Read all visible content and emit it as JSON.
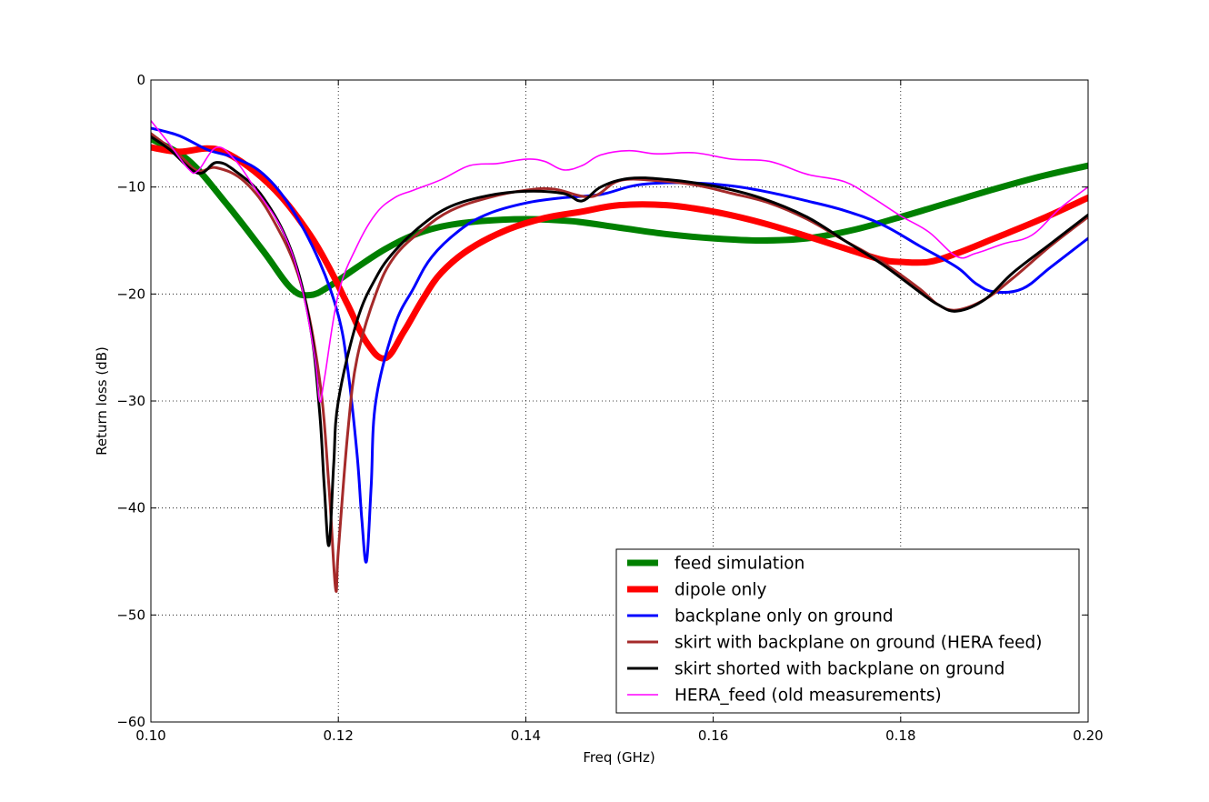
{
  "chart_data": {
    "type": "line",
    "title": "",
    "xlabel": "Freq (GHz)",
    "ylabel": "Return loss (dB)",
    "xlim": [
      0.1,
      0.2
    ],
    "ylim": [
      -60,
      0
    ],
    "grid": true,
    "legend_position": "lower-right",
    "x_ticks": [
      {
        "value": 0.1,
        "label": "0.10"
      },
      {
        "value": 0.12,
        "label": "0.12"
      },
      {
        "value": 0.14,
        "label": "0.14"
      },
      {
        "value": 0.16,
        "label": "0.16"
      },
      {
        "value": 0.18,
        "label": "0.18"
      },
      {
        "value": 0.2,
        "label": "0.20"
      }
    ],
    "y_ticks": [
      {
        "value": 0,
        "label": "0"
      },
      {
        "value": -10,
        "label": "−10"
      },
      {
        "value": -20,
        "label": "−20"
      },
      {
        "value": -30,
        "label": "−30"
      },
      {
        "value": -40,
        "label": "−40"
      },
      {
        "value": -50,
        "label": "−50"
      },
      {
        "value": -60,
        "label": "−60"
      }
    ],
    "series": [
      {
        "name": "feed simulation",
        "color": "#008000",
        "weight": "heavy",
        "points": [
          [
            0.1,
            -5.5
          ],
          [
            0.104,
            -7.5
          ],
          [
            0.108,
            -11.5
          ],
          [
            0.112,
            -16.0
          ],
          [
            0.115,
            -19.5
          ],
          [
            0.117,
            -20.1
          ],
          [
            0.119,
            -19.3
          ],
          [
            0.122,
            -17.5
          ],
          [
            0.125,
            -15.8
          ],
          [
            0.128,
            -14.5
          ],
          [
            0.131,
            -13.7
          ],
          [
            0.135,
            -13.2
          ],
          [
            0.14,
            -13.0
          ],
          [
            0.145,
            -13.2
          ],
          [
            0.15,
            -13.8
          ],
          [
            0.155,
            -14.4
          ],
          [
            0.16,
            -14.8
          ],
          [
            0.165,
            -15.0
          ],
          [
            0.17,
            -14.8
          ],
          [
            0.175,
            -14.0
          ],
          [
            0.18,
            -12.8
          ],
          [
            0.185,
            -11.5
          ],
          [
            0.19,
            -10.2
          ],
          [
            0.195,
            -9.0
          ],
          [
            0.2,
            -8.0
          ]
        ]
      },
      {
        "name": "dipole only",
        "color": "#ff0000",
        "weight": "heavy",
        "points": [
          [
            0.1,
            -6.3
          ],
          [
            0.103,
            -6.7
          ],
          [
            0.106,
            -6.4
          ],
          [
            0.108,
            -6.8
          ],
          [
            0.111,
            -8.5
          ],
          [
            0.114,
            -11.0
          ],
          [
            0.117,
            -14.5
          ],
          [
            0.119,
            -17.5
          ],
          [
            0.121,
            -21.0
          ],
          [
            0.123,
            -24.5
          ],
          [
            0.125,
            -26.0
          ],
          [
            0.127,
            -23.5
          ],
          [
            0.129,
            -20.5
          ],
          [
            0.131,
            -18.0
          ],
          [
            0.134,
            -15.8
          ],
          [
            0.138,
            -14.0
          ],
          [
            0.142,
            -12.9
          ],
          [
            0.146,
            -12.3
          ],
          [
            0.15,
            -11.7
          ],
          [
            0.155,
            -11.7
          ],
          [
            0.16,
            -12.3
          ],
          [
            0.165,
            -13.3
          ],
          [
            0.17,
            -14.6
          ],
          [
            0.175,
            -16.0
          ],
          [
            0.178,
            -16.8
          ],
          [
            0.18,
            -17.0
          ],
          [
            0.183,
            -17.0
          ],
          [
            0.186,
            -16.2
          ],
          [
            0.19,
            -14.8
          ],
          [
            0.195,
            -13.0
          ],
          [
            0.2,
            -11.0
          ]
        ]
      },
      {
        "name": "backplane only on ground",
        "color": "#0000ff",
        "weight": "medium",
        "points": [
          [
            0.1,
            -4.5
          ],
          [
            0.103,
            -5.2
          ],
          [
            0.106,
            -6.5
          ],
          [
            0.109,
            -7.3
          ],
          [
            0.112,
            -8.8
          ],
          [
            0.115,
            -12.0
          ],
          [
            0.118,
            -17.0
          ],
          [
            0.12,
            -22.0
          ],
          [
            0.121,
            -27.0
          ],
          [
            0.122,
            -35.0
          ],
          [
            0.1225,
            -41.0
          ],
          [
            0.123,
            -45.0
          ],
          [
            0.1235,
            -38.0
          ],
          [
            0.124,
            -30.0
          ],
          [
            0.126,
            -23.0
          ],
          [
            0.128,
            -19.5
          ],
          [
            0.13,
            -16.5
          ],
          [
            0.133,
            -14.0
          ],
          [
            0.136,
            -12.5
          ],
          [
            0.14,
            -11.5
          ],
          [
            0.144,
            -11.0
          ],
          [
            0.148,
            -10.7
          ],
          [
            0.152,
            -9.8
          ],
          [
            0.157,
            -9.6
          ],
          [
            0.162,
            -9.9
          ],
          [
            0.166,
            -10.5
          ],
          [
            0.17,
            -11.3
          ],
          [
            0.174,
            -12.2
          ],
          [
            0.178,
            -13.5
          ],
          [
            0.182,
            -15.5
          ],
          [
            0.186,
            -17.5
          ],
          [
            0.188,
            -19.0
          ],
          [
            0.19,
            -19.8
          ],
          [
            0.193,
            -19.5
          ],
          [
            0.196,
            -17.5
          ],
          [
            0.2,
            -14.8
          ]
        ]
      },
      {
        "name": "skirt with backplane on ground (HERA feed)",
        "color": "#a52a2a",
        "weight": "medium",
        "points": [
          [
            0.1,
            -5.0
          ],
          [
            0.103,
            -7.0
          ],
          [
            0.105,
            -8.5
          ],
          [
            0.107,
            -8.2
          ],
          [
            0.11,
            -9.5
          ],
          [
            0.113,
            -13.0
          ],
          [
            0.116,
            -19.0
          ],
          [
            0.118,
            -28.0
          ],
          [
            0.119,
            -38.0
          ],
          [
            0.1197,
            -47.5
          ],
          [
            0.12,
            -44.0
          ],
          [
            0.121,
            -33.0
          ],
          [
            0.122,
            -26.0
          ],
          [
            0.124,
            -20.0
          ],
          [
            0.126,
            -16.5
          ],
          [
            0.129,
            -14.0
          ],
          [
            0.132,
            -12.2
          ],
          [
            0.136,
            -11.0
          ],
          [
            0.14,
            -10.3
          ],
          [
            0.143,
            -10.2
          ],
          [
            0.147,
            -10.9
          ],
          [
            0.15,
            -9.4
          ],
          [
            0.154,
            -9.4
          ],
          [
            0.158,
            -9.8
          ],
          [
            0.162,
            -10.6
          ],
          [
            0.166,
            -11.5
          ],
          [
            0.17,
            -13.0
          ],
          [
            0.174,
            -15.0
          ],
          [
            0.178,
            -17.0
          ],
          [
            0.182,
            -19.5
          ],
          [
            0.184,
            -21.0
          ],
          [
            0.186,
            -21.5
          ],
          [
            0.189,
            -20.5
          ],
          [
            0.192,
            -18.5
          ],
          [
            0.196,
            -15.5
          ],
          [
            0.2,
            -12.8
          ]
        ]
      },
      {
        "name": "skirt shorted with backplane on ground",
        "color": "#000000",
        "weight": "medium",
        "points": [
          [
            0.1,
            -5.3
          ],
          [
            0.102,
            -6.5
          ],
          [
            0.105,
            -8.7
          ],
          [
            0.107,
            -7.7
          ],
          [
            0.109,
            -8.5
          ],
          [
            0.112,
            -11.0
          ],
          [
            0.115,
            -16.0
          ],
          [
            0.117,
            -23.0
          ],
          [
            0.118,
            -31.0
          ],
          [
            0.1185,
            -38.0
          ],
          [
            0.119,
            -43.5
          ],
          [
            0.1195,
            -36.0
          ],
          [
            0.12,
            -30.0
          ],
          [
            0.122,
            -22.5
          ],
          [
            0.124,
            -18.5
          ],
          [
            0.126,
            -16.0
          ],
          [
            0.129,
            -13.5
          ],
          [
            0.132,
            -11.8
          ],
          [
            0.136,
            -10.8
          ],
          [
            0.14,
            -10.4
          ],
          [
            0.144,
            -10.6
          ],
          [
            0.146,
            -11.3
          ],
          [
            0.148,
            -10.0
          ],
          [
            0.151,
            -9.2
          ],
          [
            0.155,
            -9.3
          ],
          [
            0.16,
            -9.9
          ],
          [
            0.165,
            -11.0
          ],
          [
            0.17,
            -12.8
          ],
          [
            0.174,
            -15.0
          ],
          [
            0.178,
            -17.2
          ],
          [
            0.182,
            -19.8
          ],
          [
            0.184,
            -21.0
          ],
          [
            0.186,
            -21.6
          ],
          [
            0.189,
            -20.5
          ],
          [
            0.192,
            -18.0
          ],
          [
            0.196,
            -15.3
          ],
          [
            0.2,
            -12.6
          ]
        ]
      },
      {
        "name": "HERA_feed (old measurements)",
        "color": "#ff00ff",
        "weight": "thin",
        "points": [
          [
            0.1,
            -3.8
          ],
          [
            0.102,
            -6.0
          ],
          [
            0.104,
            -8.3
          ],
          [
            0.105,
            -8.5
          ],
          [
            0.107,
            -6.3
          ],
          [
            0.109,
            -7.5
          ],
          [
            0.111,
            -10.0
          ],
          [
            0.114,
            -14.0
          ],
          [
            0.116,
            -19.0
          ],
          [
            0.1175,
            -26.0
          ],
          [
            0.118,
            -30.0
          ],
          [
            0.1185,
            -28.0
          ],
          [
            0.12,
            -20.0
          ],
          [
            0.122,
            -15.5
          ],
          [
            0.124,
            -12.5
          ],
          [
            0.126,
            -11.0
          ],
          [
            0.128,
            -10.3
          ],
          [
            0.131,
            -9.3
          ],
          [
            0.134,
            -8.0
          ],
          [
            0.137,
            -7.8
          ],
          [
            0.14,
            -7.4
          ],
          [
            0.142,
            -7.6
          ],
          [
            0.144,
            -8.4
          ],
          [
            0.146,
            -8.0
          ],
          [
            0.148,
            -7.0
          ],
          [
            0.151,
            -6.6
          ],
          [
            0.154,
            -6.9
          ],
          [
            0.158,
            -6.8
          ],
          [
            0.162,
            -7.4
          ],
          [
            0.166,
            -7.6
          ],
          [
            0.17,
            -8.8
          ],
          [
            0.174,
            -9.5
          ],
          [
            0.177,
            -11.0
          ],
          [
            0.18,
            -12.7
          ],
          [
            0.183,
            -14.2
          ],
          [
            0.186,
            -16.5
          ],
          [
            0.188,
            -16.2
          ],
          [
            0.191,
            -15.3
          ],
          [
            0.194,
            -14.5
          ],
          [
            0.197,
            -12.0
          ],
          [
            0.2,
            -10.0
          ]
        ]
      }
    ]
  }
}
